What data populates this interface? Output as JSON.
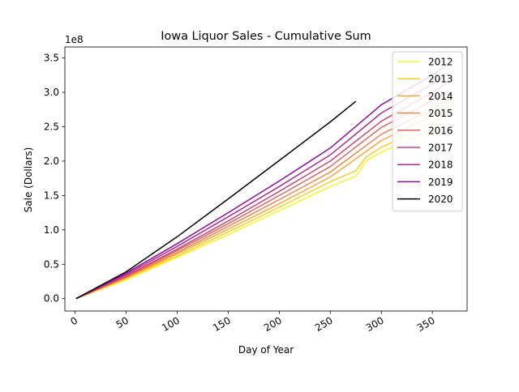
{
  "chart_data": {
    "type": "line",
    "title": "Iowa Liquor Sales - Cumulative Sum",
    "xlabel": "Day of Year",
    "ylabel": "Sale (Dollars)",
    "y_offset_label": "1e8",
    "xlim": [
      -10,
      384
    ],
    "ylim": [
      -0.18,
      3.66
    ],
    "y_unit_multiplier": 100000000,
    "x_ticks": [
      0,
      50,
      100,
      150,
      200,
      250,
      300,
      350
    ],
    "x_tick_labels": [
      "0",
      "50",
      "100",
      "150",
      "200",
      "250",
      "300",
      "350"
    ],
    "y_ticks": [
      0,
      0.5,
      1.0,
      1.5,
      2.0,
      2.5,
      3.0,
      3.5
    ],
    "y_tick_labels": [
      "0.0",
      "0.5",
      "1.0",
      "1.5",
      "2.0",
      "2.5",
      "3.0",
      "3.5"
    ],
    "grid": false,
    "legend_position": "top-right",
    "series": [
      {
        "name": "2012",
        "color": "#f0f921",
        "x": [
          1,
          50,
          100,
          150,
          200,
          250,
          275,
          285,
          300,
          350,
          366
        ],
        "values": [
          0.0,
          0.27,
          0.6,
          0.93,
          1.28,
          1.63,
          1.78,
          2.0,
          2.13,
          2.45,
          2.6
        ]
      },
      {
        "name": "2013",
        "color": "#fcce25",
        "x": [
          1,
          50,
          100,
          150,
          200,
          250,
          275,
          285,
          300,
          350,
          366
        ],
        "values": [
          0.0,
          0.29,
          0.62,
          0.97,
          1.33,
          1.7,
          1.86,
          2.06,
          2.2,
          2.55,
          2.7
        ]
      },
      {
        "name": "2014",
        "color": "#fca636",
        "x": [
          1,
          50,
          100,
          150,
          200,
          250,
          300,
          350,
          366
        ],
        "values": [
          0.0,
          0.3,
          0.65,
          1.01,
          1.38,
          1.77,
          2.3,
          2.66,
          2.8
        ]
      },
      {
        "name": "2015",
        "color": "#f2844b",
        "x": [
          1,
          50,
          100,
          150,
          200,
          250,
          300,
          350,
          366
        ],
        "values": [
          0.0,
          0.31,
          0.67,
          1.05,
          1.44,
          1.84,
          2.39,
          2.76,
          2.9
        ]
      },
      {
        "name": "2016",
        "color": "#e16462",
        "x": [
          1,
          50,
          100,
          150,
          200,
          250,
          300,
          350,
          366
        ],
        "values": [
          0.0,
          0.32,
          0.7,
          1.09,
          1.5,
          1.92,
          2.49,
          2.88,
          3.02
        ]
      },
      {
        "name": "2017",
        "color": "#cc4778",
        "x": [
          1,
          50,
          100,
          150,
          200,
          250,
          300,
          350,
          366
        ],
        "values": [
          0.0,
          0.33,
          0.72,
          1.13,
          1.56,
          2.0,
          2.58,
          3.0,
          3.15
        ]
      },
      {
        "name": "2018",
        "color": "#b12a90",
        "x": [
          1,
          50,
          100,
          150,
          200,
          250,
          300,
          350,
          366
        ],
        "values": [
          0.0,
          0.35,
          0.76,
          1.19,
          1.63,
          2.09,
          2.7,
          3.12,
          3.28
        ]
      },
      {
        "name": "2019",
        "color": "#8f0da4",
        "x": [
          1,
          50,
          100,
          150,
          200,
          250,
          300,
          350,
          366
        ],
        "values": [
          0.0,
          0.37,
          0.8,
          1.25,
          1.71,
          2.19,
          2.82,
          3.25,
          3.42
        ]
      },
      {
        "name": "2020",
        "color": "#000000",
        "x": [
          1,
          50,
          100,
          150,
          200,
          250,
          275
        ],
        "values": [
          0.0,
          0.39,
          0.9,
          1.45,
          2.01,
          2.57,
          2.87
        ]
      }
    ]
  }
}
